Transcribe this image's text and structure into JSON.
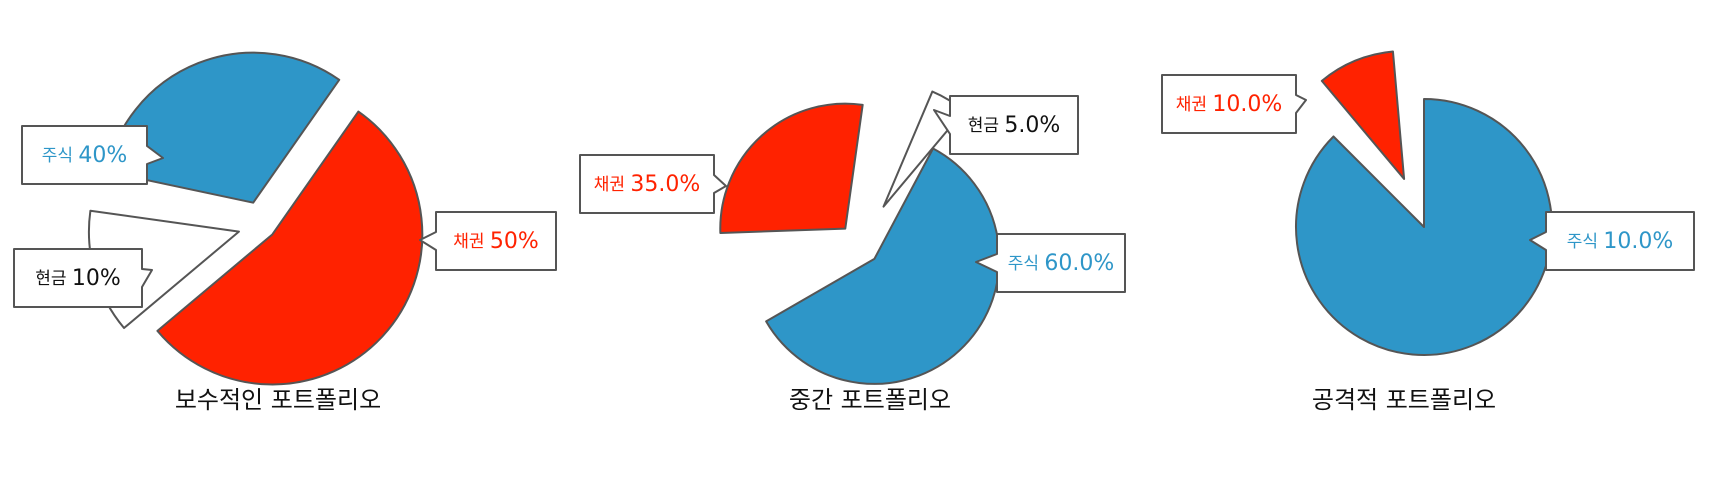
{
  "chart_data": [
    {
      "type": "pie",
      "title": "보수적인 포트폴리오",
      "slices": [
        {
          "label": "주식",
          "value": 40,
          "display": "40%",
          "color": "#2e96c8"
        },
        {
          "label": "채권",
          "value": 50,
          "display": "50%",
          "color": "#ff2200"
        },
        {
          "label": "현금",
          "value": 10,
          "display": "10%",
          "color": "#ffffff"
        }
      ]
    },
    {
      "type": "pie",
      "title": "중간 포트폴리오",
      "slices": [
        {
          "label": "채권",
          "value": 35.0,
          "display": "35.0%",
          "color": "#ff2200"
        },
        {
          "label": "현금",
          "value": 5.0,
          "display": "5.0%",
          "color": "#ffffff"
        },
        {
          "label": "주식",
          "value": 60.0,
          "display": "60.0%",
          "color": "#2e96c8"
        }
      ]
    },
    {
      "type": "pie",
      "title": "공격적 포트폴리오",
      "slices": [
        {
          "label": "채권",
          "value": 10.0,
          "display": "10.0%",
          "color": "#ff2200"
        },
        {
          "label": "주식",
          "value": 10.0,
          "display": "10.0%",
          "color": "#2e96c8"
        }
      ]
    }
  ]
}
